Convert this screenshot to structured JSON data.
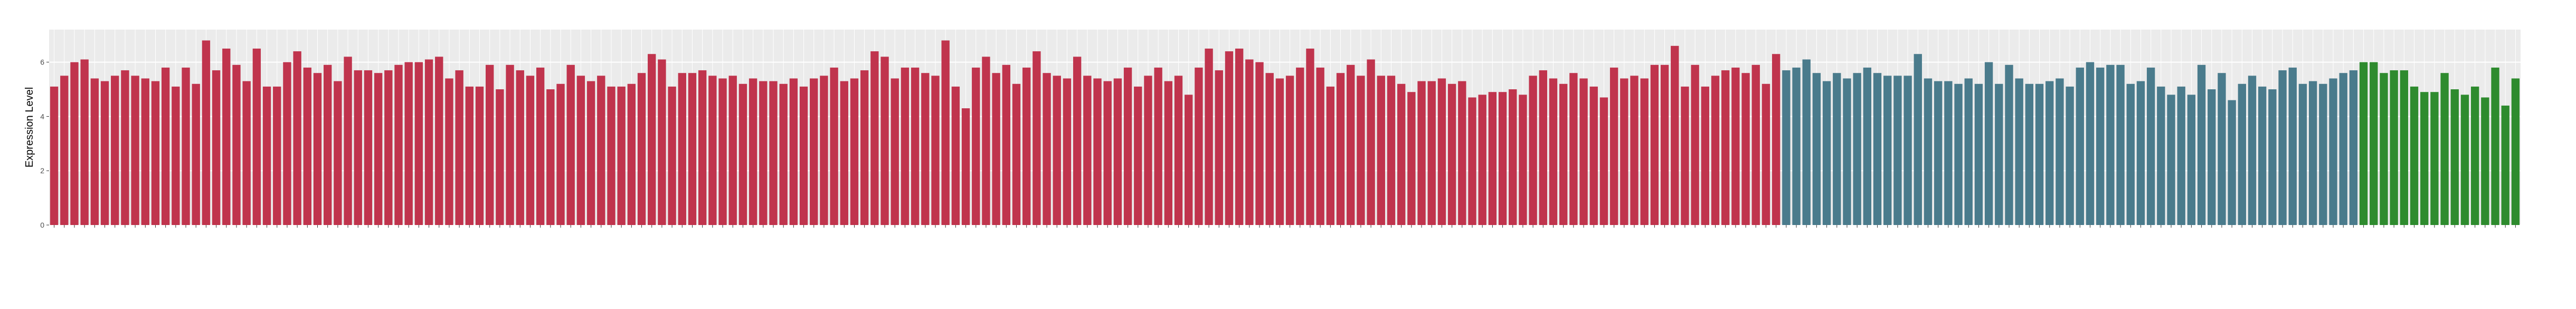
{
  "chart_data": {
    "type": "bar",
    "y_label": "Expression Level",
    "categories": [
      null,
      null,
      null,
      null,
      null,
      null,
      null,
      null,
      null,
      null,
      null,
      null,
      null,
      null,
      null,
      null,
      null,
      null,
      null,
      null,
      null,
      null,
      null,
      null,
      null,
      null,
      null,
      null,
      null,
      null,
      null,
      null,
      null,
      null,
      null,
      null,
      null,
      null,
      null,
      null,
      null,
      null,
      null,
      null,
      null,
      null,
      null,
      null,
      null,
      null,
      null,
      null,
      null,
      null,
      null,
      null,
      null,
      null,
      null,
      null,
      null,
      null,
      null,
      null,
      null,
      null,
      null,
      null,
      null,
      null,
      null,
      null,
      null,
      null,
      null,
      null,
      null,
      null,
      null,
      null,
      null,
      null,
      null,
      null,
      null,
      null,
      null,
      null,
      null,
      null,
      null,
      null,
      null,
      null,
      null,
      null,
      null,
      null,
      null,
      null,
      null,
      null,
      null,
      null,
      null,
      null,
      null,
      null,
      null,
      null,
      null,
      null,
      null,
      null,
      null,
      null,
      null,
      null,
      null,
      null,
      null,
      null,
      null,
      null,
      null,
      null,
      null,
      null,
      null,
      null,
      null,
      null,
      null,
      null,
      null,
      null,
      null,
      null,
      null,
      null,
      null,
      null,
      null,
      null,
      null,
      null,
      null,
      null,
      null,
      null,
      null,
      null,
      null,
      null,
      null,
      null,
      null,
      null,
      null,
      null,
      null,
      null,
      null,
      null,
      null,
      null,
      null,
      null,
      null,
      null,
      null,
      null,
      null,
      null,
      null,
      null,
      null,
      null,
      null,
      null,
      null,
      null,
      null,
      null,
      null,
      null,
      null,
      null,
      null,
      null,
      null,
      null,
      null,
      null,
      null,
      null,
      null,
      null,
      null,
      null,
      null,
      null,
      null,
      null,
      null,
      null,
      null,
      null,
      null,
      null,
      null,
      null,
      null,
      null,
      null,
      null,
      null,
      null,
      null,
      null,
      null,
      null,
      null,
      null,
      null,
      null,
      null,
      null,
      null,
      null,
      null,
      null,
      null,
      null,
      null,
      null,
      null,
      null,
      null,
      null,
      null,
      null,
      null,
      null
    ],
    "values": [
      5.1,
      5.5,
      6.0,
      6.1,
      5.4,
      5.3,
      5.5,
      5.7,
      5.5,
      5.4,
      5.3,
      5.8,
      5.1,
      5.8,
      5.2,
      6.8,
      5.7,
      6.5,
      5.9,
      5.3,
      6.5,
      5.1,
      5.1,
      6.0,
      6.4,
      5.8,
      5.6,
      5.9,
      5.3,
      6.2,
      5.7,
      5.7,
      5.6,
      5.7,
      5.9,
      6.0,
      6.0,
      6.1,
      6.2,
      5.4,
      5.7,
      5.1,
      5.1,
      5.9,
      5.0,
      5.9,
      5.7,
      5.5,
      5.8,
      5.0,
      5.2,
      5.9,
      5.5,
      5.3,
      5.5,
      5.1,
      5.1,
      5.2,
      5.6,
      6.3,
      6.1,
      5.1,
      5.6,
      5.6,
      5.7,
      5.5,
      5.4,
      5.5,
      5.2,
      5.4,
      5.3,
      5.3,
      5.2,
      5.4,
      5.1,
      5.4,
      5.5,
      5.8,
      5.3,
      5.4,
      5.7,
      6.4,
      6.2,
      5.4,
      5.8,
      5.8,
      5.6,
      5.5,
      6.8,
      5.1,
      4.3,
      5.8,
      6.2,
      5.6,
      5.9,
      5.2,
      5.8,
      6.4,
      5.6,
      5.5,
      5.4,
      6.2,
      5.5,
      5.4,
      5.3,
      5.4,
      5.8,
      5.1,
      5.5,
      5.8,
      5.3,
      5.5,
      4.8,
      5.8,
      6.5,
      5.7,
      6.4,
      6.5,
      6.1,
      6.0,
      5.6,
      5.4,
      5.5,
      5.8,
      6.5,
      5.8,
      5.1,
      5.6,
      5.9,
      5.5,
      6.1,
      5.5,
      5.5,
      5.2,
      4.9,
      5.3,
      5.3,
      5.4,
      5.2,
      5.3,
      4.7,
      4.8,
      4.9,
      4.9,
      5.0,
      4.8,
      5.5,
      5.7,
      5.4,
      5.2,
      5.6,
      5.4,
      5.1,
      4.7,
      5.8,
      5.4,
      5.5,
      5.4,
      5.9,
      5.9,
      6.6,
      5.1,
      5.9,
      5.1,
      5.5,
      5.7,
      5.8,
      5.6,
      5.9,
      5.2,
      6.3,
      5.7,
      5.8,
      6.1,
      5.6,
      5.3,
      5.6,
      5.4,
      5.6,
      5.8,
      5.6,
      5.5,
      5.5,
      5.5,
      6.3,
      5.4,
      5.3,
      5.3,
      5.2,
      5.4,
      5.2,
      6.0,
      5.2,
      5.9,
      5.4,
      5.2,
      5.2,
      5.3,
      5.4,
      5.1,
      5.8,
      6.0,
      5.8,
      5.9,
      5.9,
      5.2,
      5.3,
      5.8,
      5.1,
      4.8,
      5.1,
      4.8,
      5.9,
      5.0,
      5.6,
      4.6,
      5.2,
      5.5,
      5.1,
      5.0,
      5.7,
      5.8,
      5.2,
      5.3,
      5.2,
      5.4,
      5.6,
      5.7,
      6.0,
      6.0,
      5.6,
      5.7,
      5.7,
      5.1,
      4.9,
      4.9,
      5.6,
      5.0,
      4.8,
      5.1,
      4.7,
      5.8,
      4.4,
      5.4
    ],
    "colors": [
      "#c0344d",
      "#c0344d",
      "#c0344d",
      "#c0344d",
      "#c0344d",
      "#c0344d",
      "#c0344d",
      "#c0344d",
      "#c0344d",
      "#c0344d",
      "#c0344d",
      "#c0344d",
      "#c0344d",
      "#c0344d",
      "#c0344d",
      "#c0344d",
      "#c0344d",
      "#c0344d",
      "#c0344d",
      "#c0344d",
      "#c0344d",
      "#c0344d",
      "#c0344d",
      "#c0344d",
      "#c0344d",
      "#c0344d",
      "#c0344d",
      "#c0344d",
      "#c0344d",
      "#c0344d",
      "#c0344d",
      "#c0344d",
      "#c0344d",
      "#c0344d",
      "#c0344d",
      "#c0344d",
      "#c0344d",
      "#c0344d",
      "#c0344d",
      "#c0344d",
      "#c0344d",
      "#c0344d",
      "#c0344d",
      "#c0344d",
      "#c0344d",
      "#c0344d",
      "#c0344d",
      "#c0344d",
      "#c0344d",
      "#c0344d",
      "#c0344d",
      "#c0344d",
      "#c0344d",
      "#c0344d",
      "#c0344d",
      "#c0344d",
      "#c0344d",
      "#c0344d",
      "#c0344d",
      "#c0344d",
      "#c0344d",
      "#c0344d",
      "#c0344d",
      "#c0344d",
      "#c0344d",
      "#c0344d",
      "#c0344d",
      "#c0344d",
      "#c0344d",
      "#c0344d",
      "#c0344d",
      "#c0344d",
      "#c0344d",
      "#c0344d",
      "#c0344d",
      "#c0344d",
      "#c0344d",
      "#c0344d",
      "#c0344d",
      "#c0344d",
      "#c0344d",
      "#c0344d",
      "#c0344d",
      "#c0344d",
      "#c0344d",
      "#c0344d",
      "#c0344d",
      "#c0344d",
      "#c0344d",
      "#c0344d",
      "#c0344d",
      "#c0344d",
      "#c0344d",
      "#c0344d",
      "#c0344d",
      "#c0344d",
      "#c0344d",
      "#c0344d",
      "#c0344d",
      "#c0344d",
      "#c0344d",
      "#c0344d",
      "#c0344d",
      "#c0344d",
      "#c0344d",
      "#c0344d",
      "#c0344d",
      "#c0344d",
      "#c0344d",
      "#c0344d",
      "#c0344d",
      "#c0344d",
      "#c0344d",
      "#c0344d",
      "#c0344d",
      "#c0344d",
      "#c0344d",
      "#c0344d",
      "#c0344d",
      "#c0344d",
      "#c0344d",
      "#c0344d",
      "#c0344d",
      "#c0344d",
      "#c0344d",
      "#c0344d",
      "#c0344d",
      "#c0344d",
      "#c0344d",
      "#c0344d",
      "#c0344d",
      "#c0344d",
      "#c0344d",
      "#c0344d",
      "#c0344d",
      "#c0344d",
      "#c0344d",
      "#c0344d",
      "#c0344d",
      "#c0344d",
      "#c0344d",
      "#c0344d",
      "#c0344d",
      "#c0344d",
      "#c0344d",
      "#c0344d",
      "#c0344d",
      "#c0344d",
      "#c0344d",
      "#c0344d",
      "#c0344d",
      "#c0344d",
      "#c0344d",
      "#c0344d",
      "#c0344d",
      "#c0344d",
      "#c0344d",
      "#c0344d",
      "#c0344d",
      "#c0344d",
      "#c0344d",
      "#c0344d",
      "#c0344d",
      "#c0344d",
      "#c0344d",
      "#c0344d",
      "#c0344d",
      "#c0344d",
      "#c0344d",
      "#c0344d",
      "#c0344d",
      "#4a7b8c",
      "#4a7b8c",
      "#4a7b8c",
      "#4a7b8c",
      "#4a7b8c",
      "#4a7b8c",
      "#4a7b8c",
      "#4a7b8c",
      "#4a7b8c",
      "#4a7b8c",
      "#4a7b8c",
      "#4a7b8c",
      "#4a7b8c",
      "#4a7b8c",
      "#4a7b8c",
      "#4a7b8c",
      "#4a7b8c",
      "#4a7b8c",
      "#4a7b8c",
      "#4a7b8c",
      "#4a7b8c",
      "#4a7b8c",
      "#4a7b8c",
      "#4a7b8c",
      "#4a7b8c",
      "#4a7b8c",
      "#4a7b8c",
      "#4a7b8c",
      "#4a7b8c",
      "#4a7b8c",
      "#4a7b8c",
      "#4a7b8c",
      "#4a7b8c",
      "#4a7b8c",
      "#4a7b8c",
      "#4a7b8c",
      "#4a7b8c",
      "#4a7b8c",
      "#4a7b8c",
      "#4a7b8c",
      "#4a7b8c",
      "#4a7b8c",
      "#4a7b8c",
      "#4a7b8c",
      "#4a7b8c",
      "#4a7b8c",
      "#4a7b8c",
      "#4a7b8c",
      "#4a7b8c",
      "#4a7b8c",
      "#4a7b8c",
      "#4a7b8c",
      "#4a7b8c",
      "#4a7b8c",
      "#4a7b8c",
      "#4a7b8c",
      "#4a7b8c",
      "#2e8b2e",
      "#2e8b2e",
      "#2e8b2e",
      "#2e8b2e",
      "#2e8b2e",
      "#2e8b2e",
      "#2e8b2e",
      "#2e8b2e",
      "#2e8b2e",
      "#2e8b2e",
      "#2e8b2e",
      "#2e8b2e",
      "#2e8b2e",
      "#2e8b2e",
      "#2e8b2e",
      "#2e8b2e"
    ],
    "ylim": [
      0,
      7.2
    ],
    "yticks": [
      0,
      2,
      4,
      6
    ],
    "grid": true
  }
}
